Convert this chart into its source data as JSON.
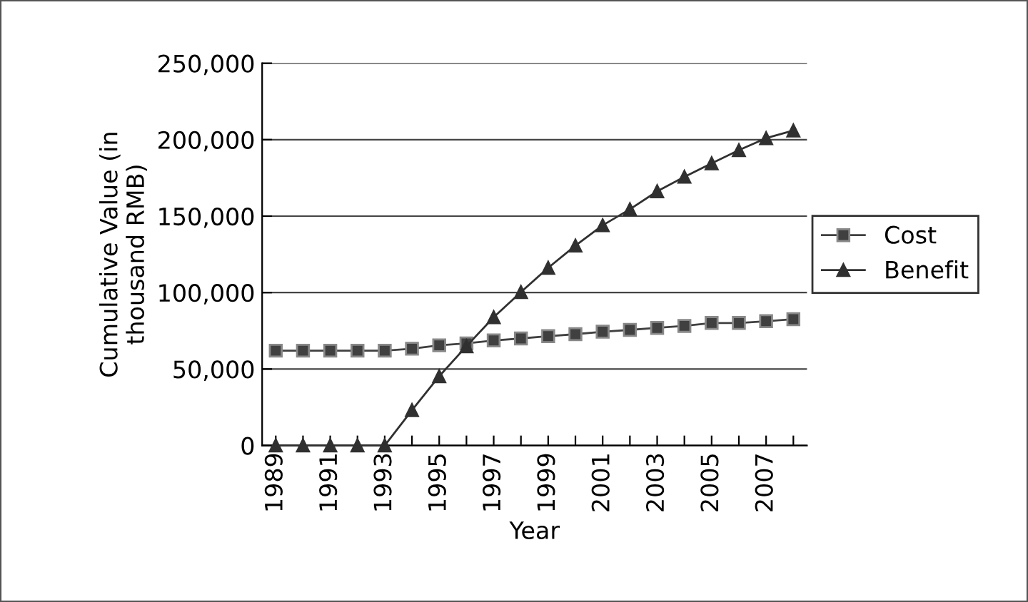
{
  "chart_data": {
    "type": "line",
    "xlabel": "Year",
    "ylabel": "Cumulative Value (in\nthousand RMB)",
    "categories": [
      "1989",
      null,
      "1991",
      null,
      "1993",
      null,
      "1995",
      null,
      "1997",
      null,
      "1999",
      null,
      "2001",
      null,
      "2003",
      null,
      "2005",
      null,
      "2007",
      null
    ],
    "series": [
      {
        "name": "Cost",
        "color": "#404040",
        "marker": "square",
        "values": [
          62000,
          62000,
          62000,
          62000,
          62000,
          63300,
          65500,
          66800,
          68700,
          70000,
          71500,
          72800,
          74400,
          75600,
          76900,
          78200,
          80100,
          80100,
          81300,
          82600
        ]
      },
      {
        "name": "Benefit",
        "color": "#303030",
        "marker": "triangle",
        "values": [
          0,
          0,
          0,
          0,
          0,
          23100,
          45300,
          64900,
          83900,
          100300,
          116200,
          130700,
          144000,
          154500,
          166200,
          175700,
          184500,
          193100,
          201000,
          206000
        ]
      }
    ],
    "ylim": [
      0,
      250000
    ],
    "yticks": [
      0,
      {
        "value": 50000,
        "label": "50,000"
      },
      {
        "value": 100000,
        "label": "100,000"
      },
      {
        "value": 150000,
        "label": "150,000"
      },
      {
        "value": 200000,
        "label": "200,000"
      },
      {
        "value": 250000,
        "label": "250,000"
      }
    ],
    "grid": "y",
    "legend": "right",
    "line_style": "solid"
  }
}
